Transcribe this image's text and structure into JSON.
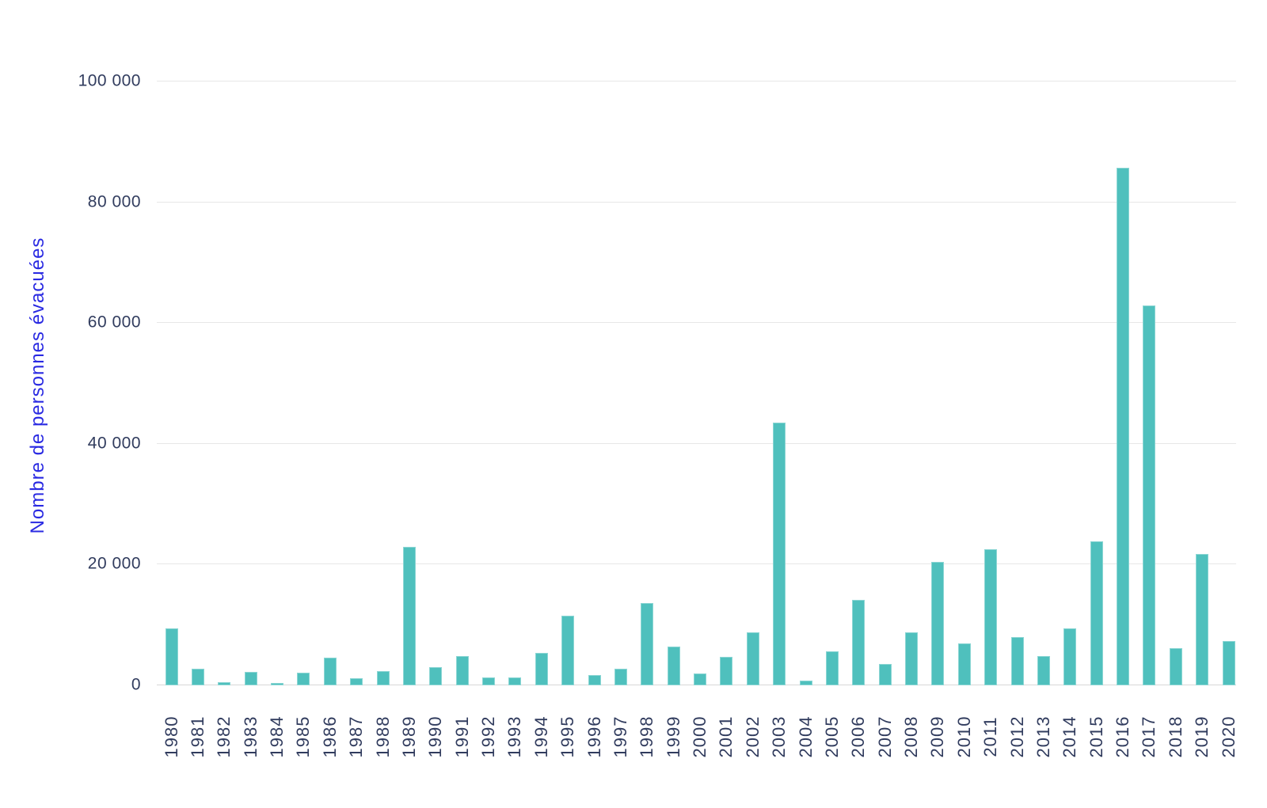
{
  "chart_data": {
    "type": "bar",
    "title": "",
    "xlabel": "",
    "ylabel": "Nombre de personnes évacuées",
    "categories": [
      "1980",
      "1981",
      "1982",
      "1983",
      "1984",
      "1985",
      "1986",
      "1987",
      "1988",
      "1989",
      "1990",
      "1991",
      "1992",
      "1993",
      "1994",
      "1995",
      "1996",
      "1997",
      "1998",
      "1999",
      "2000",
      "2001",
      "2002",
      "2003",
      "2004",
      "2005",
      "2006",
      "2007",
      "2008",
      "2009",
      "2010",
      "2011",
      "2012",
      "2013",
      "2014",
      "2015",
      "2016",
      "2017",
      "2018",
      "2019",
      "2020"
    ],
    "values": [
      9500,
      2800,
      500,
      2200,
      400,
      2100,
      4600,
      1200,
      2300,
      22900,
      3000,
      4800,
      1300,
      1300,
      5400,
      11600,
      1700,
      2800,
      13600,
      6400,
      2000,
      4700,
      8800,
      43500,
      800,
      5600,
      14200,
      3500,
      8800,
      20400,
      6900,
      22500,
      8000,
      4800,
      9500,
      23900,
      85700,
      62900,
      6100,
      21800,
      7400
    ],
    "ylim": [
      0,
      100000
    ],
    "yticks": [
      {
        "value": 0,
        "label": "0"
      },
      {
        "value": 20000,
        "label": "20 000"
      },
      {
        "value": 40000,
        "label": "40 000"
      },
      {
        "value": 60000,
        "label": "60 000"
      },
      {
        "value": 80000,
        "label": "80 000"
      },
      {
        "value": 100000,
        "label": "100 000"
      }
    ],
    "grid": "horizontal",
    "legend": "none",
    "x_tick_rotation": 90
  },
  "colors": {
    "bar": "#4fc0bd",
    "y_axis_title": "#2a2ae2",
    "tick_label": "#313c5e",
    "gridline": "#e7e7e7",
    "axis_line": "#d8d8d8",
    "background": "#ffffff"
  }
}
